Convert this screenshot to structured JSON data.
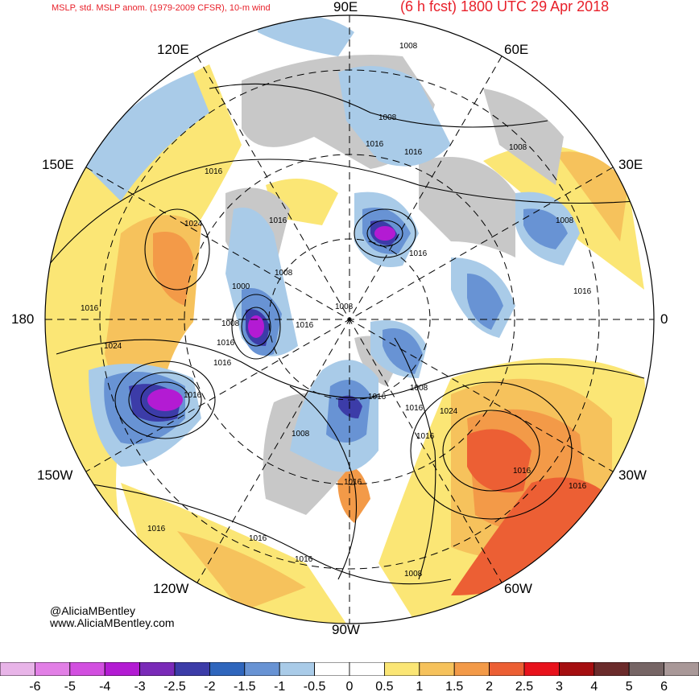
{
  "header": {
    "title_left": "MSLP, std. MSLP anom. (1979-2009 CFSR), 10-m wind",
    "title_right": "(6 h fcst) 1800 UTC 29 Apr 2018"
  },
  "credits": {
    "twitter": "@AliciaMBentley",
    "website": "www.AliciaMBentley.com"
  },
  "longitude_labels": {
    "lon_90e": "90E",
    "lon_60e": "60E",
    "lon_120e": "120E",
    "lon_30e": "30E",
    "lon_150e": "150E",
    "lon_180": "180",
    "lon_0": "0",
    "lon_150w": "150W",
    "lon_30w": "30W",
    "lon_120w": "120W",
    "lon_60w": "60W",
    "lon_90w": "90W"
  },
  "isobar_labels": [
    "1008",
    "1008",
    "1016",
    "1016",
    "1008",
    "1016",
    "1024",
    "1016",
    "1008",
    "1016",
    "1008",
    "1000",
    "1008",
    "1016",
    "1016",
    "1016",
    "1008",
    "1016",
    "1024",
    "1016",
    "1016",
    "1016",
    "1008",
    "1024",
    "1016",
    "1016",
    "1016",
    "1016",
    "1016",
    "1016",
    "1016",
    "1008",
    "1008",
    "1016"
  ],
  "colorbar": {
    "tick_labels": [
      "-6",
      "-5",
      "-4",
      "-3",
      "-2.5",
      "-2",
      "-1.5",
      "-1",
      "-0.5",
      "0",
      "0.5",
      "1",
      "1.5",
      "2",
      "2.5",
      "3",
      "4",
      "5",
      "6"
    ],
    "colors": [
      "#e8b4e8",
      "#e27fe6",
      "#d24fe0",
      "#b31bd3",
      "#7a2ab8",
      "#3c3ca8",
      "#2f66bd",
      "#6893d4",
      "#a9cbe8",
      "#ffffff",
      "#ffffff",
      "#fbe675",
      "#f6c25c",
      "#f39a48",
      "#ec5f34",
      "#e8121c",
      "#a50e10",
      "#6b2b2b",
      "#766565",
      "#a99898"
    ]
  },
  "map_colors": {
    "land": "#c8c8c8",
    "neg_weak": "#a9cbe8",
    "neg_mod": "#6893d4",
    "neg_strong": "#3c3ca8",
    "neg_extreme": "#b31bd3",
    "pos_weak": "#fbe675",
    "pos_mod": "#f6c25c",
    "pos_strong": "#f39a48",
    "pos_extreme": "#ec5f34"
  }
}
